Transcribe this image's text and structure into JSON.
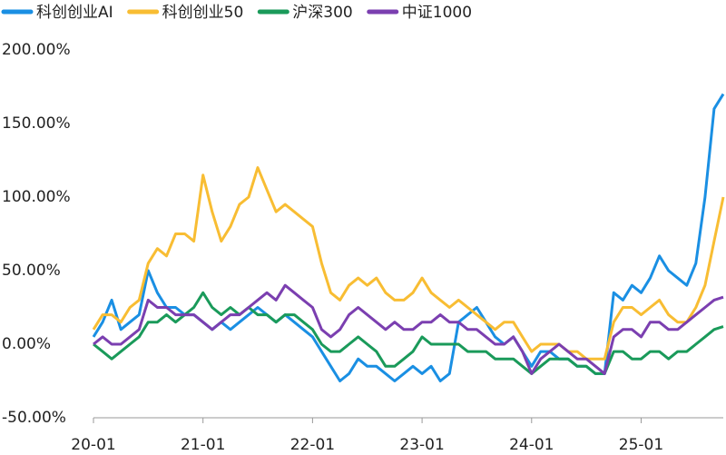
{
  "chart_data": {
    "type": "line",
    "categories": [
      "20-01",
      null,
      null,
      null,
      null,
      null,
      null,
      null,
      null,
      null,
      null,
      null,
      "21-01",
      null,
      null,
      null,
      null,
      null,
      null,
      null,
      null,
      null,
      null,
      null,
      "22-01",
      null,
      null,
      null,
      null,
      null,
      null,
      null,
      null,
      null,
      null,
      null,
      "23-01",
      null,
      null,
      null,
      null,
      null,
      null,
      null,
      null,
      null,
      null,
      null,
      "24-01",
      null,
      null,
      null,
      null,
      null,
      null,
      null,
      null,
      null,
      null,
      null,
      "25-01",
      null,
      null,
      null,
      null,
      null,
      null,
      null,
      null,
      null
    ],
    "ylim": [
      -50,
      200
    ],
    "yticks": [
      {
        "value": 200,
        "label": "200.00%"
      },
      {
        "value": 150,
        "label": "150.00%"
      },
      {
        "value": 100,
        "label": "100.00%"
      },
      {
        "value": 50,
        "label": "50.00%"
      },
      {
        "value": 0,
        "label": "0.00%"
      },
      {
        "value": -50,
        "label": "-50.00%"
      }
    ],
    "series": [
      {
        "name": "科创创业AI",
        "color": "#1a8fe3",
        "values": [
          5,
          15,
          30,
          10,
          15,
          20,
          50,
          35,
          25,
          25,
          20,
          20,
          15,
          10,
          15,
          10,
          15,
          20,
          25,
          20,
          15,
          20,
          15,
          10,
          5,
          -5,
          -15,
          -25,
          -20,
          -10,
          -15,
          -15,
          -20,
          -25,
          -20,
          -15,
          -20,
          -15,
          -25,
          -20,
          15,
          20,
          25,
          15,
          5,
          0,
          5,
          -5,
          -15,
          -5,
          -5,
          -10,
          -10,
          -15,
          -15,
          -20,
          -20,
          35,
          30,
          40,
          35,
          45,
          60,
          50,
          45,
          40,
          55,
          100,
          160,
          170
        ]
      },
      {
        "name": "科创创业50",
        "color": "#f8bd33",
        "values": [
          10,
          20,
          20,
          15,
          25,
          30,
          55,
          65,
          60,
          75,
          75,
          70,
          115,
          90,
          70,
          80,
          95,
          100,
          120,
          105,
          90,
          95,
          90,
          85,
          80,
          55,
          35,
          30,
          40,
          45,
          40,
          45,
          35,
          30,
          30,
          35,
          45,
          35,
          30,
          25,
          30,
          25,
          20,
          15,
          10,
          15,
          15,
          5,
          -5,
          0,
          0,
          0,
          -5,
          -5,
          -10,
          -10,
          -10,
          15,
          25,
          25,
          20,
          25,
          30,
          20,
          15,
          15,
          25,
          40,
          70,
          100
        ]
      },
      {
        "name": "沪深300",
        "color": "#1a9a5a",
        "values": [
          0,
          -5,
          -10,
          -5,
          0,
          5,
          15,
          15,
          20,
          15,
          20,
          25,
          35,
          25,
          20,
          25,
          20,
          25,
          20,
          20,
          15,
          20,
          20,
          15,
          10,
          0,
          -5,
          -5,
          0,
          5,
          0,
          -5,
          -15,
          -15,
          -10,
          -5,
          5,
          0,
          0,
          0,
          0,
          -5,
          -5,
          -5,
          -10,
          -10,
          -10,
          -15,
          -20,
          -15,
          -10,
          -10,
          -10,
          -15,
          -15,
          -20,
          -20,
          -5,
          -5,
          -10,
          -10,
          -5,
          -5,
          -10,
          -5,
          -5,
          0,
          5,
          10,
          12
        ]
      },
      {
        "name": "中证1000",
        "color": "#7b3fb0",
        "values": [
          0,
          5,
          0,
          0,
          5,
          10,
          30,
          25,
          25,
          20,
          20,
          20,
          15,
          10,
          15,
          20,
          20,
          25,
          30,
          35,
          30,
          40,
          35,
          30,
          25,
          10,
          5,
          10,
          20,
          25,
          20,
          15,
          10,
          15,
          10,
          10,
          15,
          15,
          20,
          15,
          15,
          10,
          10,
          5,
          0,
          0,
          5,
          -5,
          -20,
          -10,
          -5,
          0,
          -5,
          -10,
          -10,
          -15,
          -20,
          5,
          10,
          10,
          5,
          15,
          15,
          10,
          10,
          15,
          20,
          25,
          30,
          32
        ]
      }
    ]
  }
}
